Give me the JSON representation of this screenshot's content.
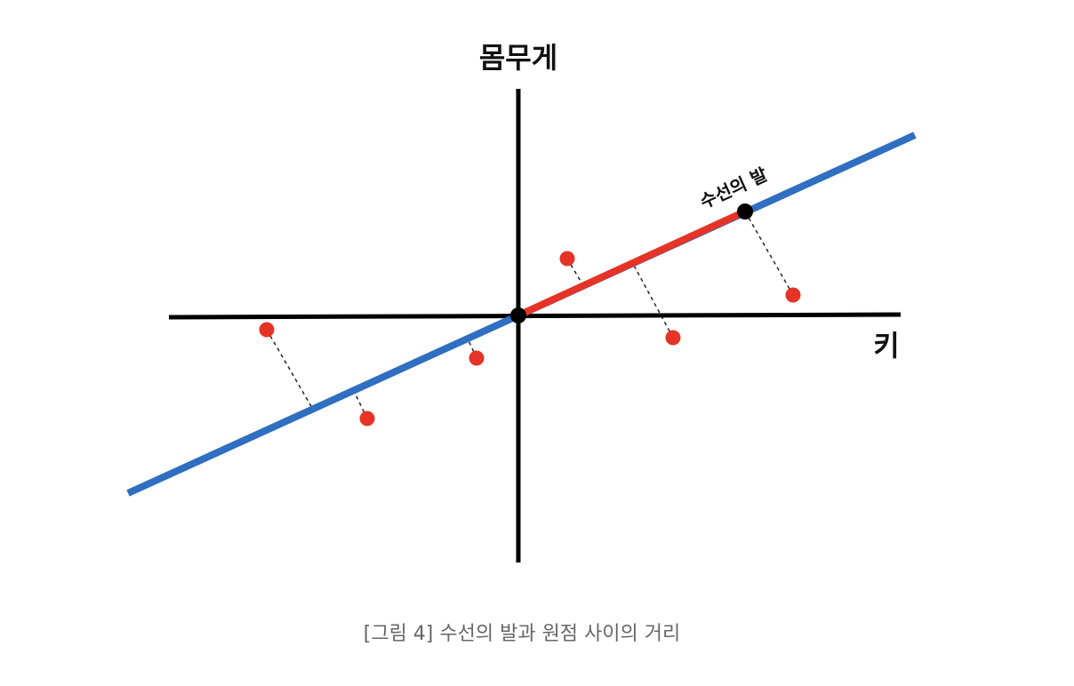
{
  "diagram": {
    "y_axis_label": "몸무게",
    "x_axis_label": "키",
    "foot_label": "수선의 발",
    "caption": "[그림 4] 수선의 발과 원점 사이의 거리",
    "colors": {
      "axis": "#000000",
      "regression_line": "#2f6ec0",
      "foot_segment": "#e53427",
      "data_point": "#e53427",
      "projection_line": "#222222",
      "marker": "#000000"
    }
  }
}
